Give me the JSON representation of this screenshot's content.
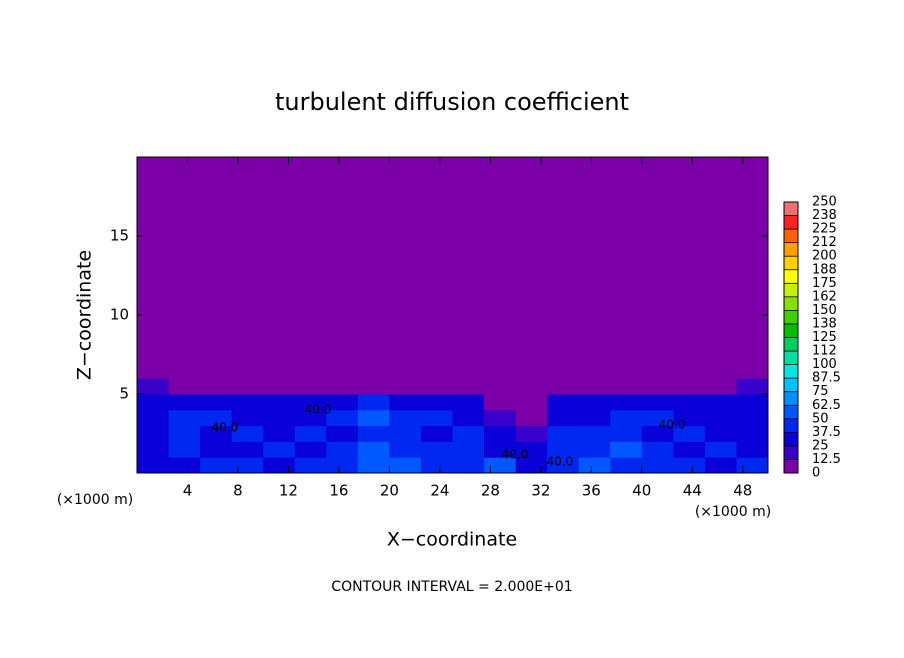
{
  "chart_data": {
    "type": "heatmap",
    "title": "turbulent diffusion coefficient",
    "xlabel": "X−coordinate",
    "ylabel": "Z−coordinate",
    "xunit": "(×1000 m)",
    "yunit": "(×1000 m)",
    "note": "CONTOUR INTERVAL = 2.000E+01",
    "xlim": [
      0,
      50
    ],
    "ylim": [
      0,
      20
    ],
    "xticks": [
      4,
      8,
      12,
      16,
      20,
      24,
      28,
      32,
      36,
      40,
      44,
      48
    ],
    "yticks": [
      5,
      10,
      15
    ],
    "xbins": [
      0,
      2.5,
      5,
      7.5,
      10,
      12.5,
      15,
      17.5,
      20,
      22.5,
      25,
      27.5,
      30,
      32.5,
      35,
      37.5,
      40,
      42.5,
      45,
      47.5,
      50
    ],
    "ybins": [
      0,
      1,
      2,
      3,
      4,
      5,
      6,
      20
    ],
    "z": [
      [
        30,
        35,
        40,
        45,
        35,
        40,
        45,
        50,
        55,
        45,
        40,
        50,
        35,
        40,
        50,
        40,
        45,
        40,
        35,
        40
      ],
      [
        35,
        40,
        30,
        35,
        40,
        35,
        45,
        55,
        45,
        40,
        45,
        30,
        35,
        40,
        45,
        55,
        40,
        35,
        40,
        35
      ],
      [
        30,
        45,
        35,
        40,
        30,
        40,
        35,
        45,
        40,
        35,
        40,
        25,
        20,
        45,
        40,
        45,
        35,
        40,
        35,
        30
      ],
      [
        35,
        40,
        40,
        30,
        35,
        35,
        40,
        50,
        45,
        40,
        35,
        15,
        10,
        35,
        35,
        40,
        40,
        35,
        30,
        35
      ],
      [
        30,
        35,
        35,
        30,
        30,
        25,
        30,
        40,
        35,
        35,
        30,
        10,
        5,
        25,
        30,
        35,
        35,
        30,
        25,
        35
      ],
      [
        20,
        10,
        5,
        5,
        5,
        5,
        5,
        10,
        5,
        10,
        5,
        0,
        0,
        0,
        5,
        10,
        5,
        0,
        0,
        15
      ],
      [
        0,
        0,
        0,
        0,
        0,
        0,
        0,
        0,
        0,
        0,
        0,
        0,
        0,
        0,
        0,
        0,
        0,
        0,
        0,
        0
      ]
    ],
    "contour_labels": [
      "40.0",
      "40.0",
      "40.0",
      "40.0",
      "40.0"
    ],
    "levels": [
      0,
      {
        "value": 12.5,
        "label": "12.5"
      },
      25,
      {
        "value": 37.5,
        "label": "37.5"
      },
      50,
      {
        "value": 62.5,
        "label": "62.5"
      },
      75,
      {
        "value": 87.5,
        "label": "87.5"
      },
      100,
      {
        "value": 112.5,
        "label": "112"
      },
      125,
      {
        "value": 137.5,
        "label": "138"
      },
      150,
      {
        "value": 162.5,
        "label": "162"
      },
      175,
      {
        "value": 187.5,
        "label": "188"
      },
      200,
      {
        "value": 212.5,
        "label": "212"
      },
      225,
      {
        "value": 237.5,
        "label": "238"
      },
      250
    ],
    "colors": [
      "#7b00a8",
      "#3800c8",
      "#0a00d8",
      "#0028f0",
      "#0058ff",
      "#0090ff",
      "#00c4ff",
      "#00e8e0",
      "#00e0a0",
      "#00d060",
      "#00c000",
      "#40d000",
      "#88e000",
      "#c8f000",
      "#ffff00",
      "#ffd000",
      "#ffa000",
      "#ff6000",
      "#ff2020",
      "#f07070"
    ]
  }
}
